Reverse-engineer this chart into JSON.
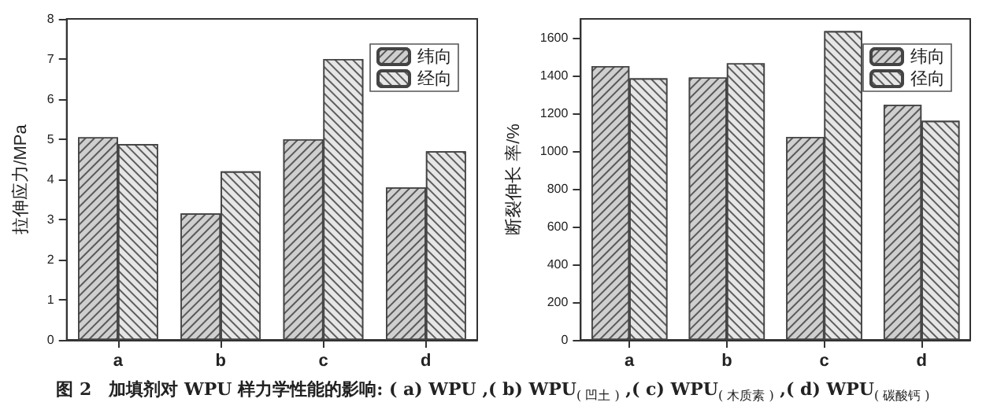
{
  "chart_data": [
    {
      "type": "bar",
      "ylabel": "拉伸应力/MPa",
      "categories": [
        "a",
        "b",
        "c",
        "d"
      ],
      "ylim": [
        0,
        8
      ],
      "yticks": [
        0,
        1,
        2,
        3,
        4,
        5,
        6,
        7,
        8
      ],
      "grid": false,
      "legend": "top right",
      "series": [
        {
          "name": "纬向",
          "color": "#cfcfcf",
          "values": [
            5.05,
            3.15,
            5.0,
            3.8
          ]
        },
        {
          "name": "经向",
          "color": "#e6e6e6",
          "values": [
            4.88,
            4.2,
            7.0,
            4.7
          ]
        }
      ],
      "annotations": [
        "图 2　加填剂对 WPU 样力学性能的影响: ( a) WPU ,( b) WPU$_{( 凹土 )}$ ,( c) WPU$_{( 木质素 )}$ ,( d) WPU$_{( 碳酸钙 )}$"
      ]
    },
    {
      "type": "bar",
      "ylabel": "断裂伸长 率/%",
      "categories": [
        "a",
        "b",
        "c",
        "d"
      ],
      "ylim": [
        0,
        1700
      ],
      "yticks": [
        0,
        200,
        400,
        600,
        800,
        1000,
        1200,
        1400,
        1600
      ],
      "grid": false,
      "legend": "top right",
      "series": [
        {
          "name": "纬向",
          "color": "#cfcfcf",
          "values": [
            1450,
            1390,
            1075,
            1245
          ]
        },
        {
          "name": "径向",
          "color": "#e6e6e6",
          "values": [
            1385,
            1465,
            1635,
            1160
          ]
        }
      ]
    }
  ]
}
